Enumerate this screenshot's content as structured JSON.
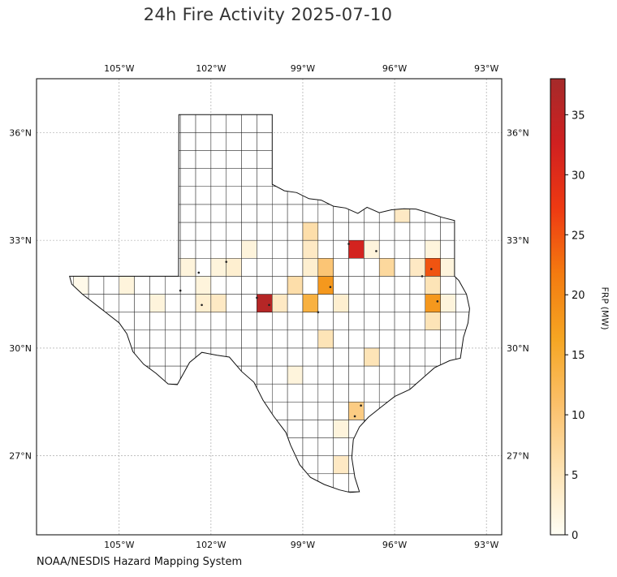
{
  "title": "24h Fire Activity 2025-07-10",
  "source": "NOAA/NESDIS Hazard Mapping System",
  "colorbar": {
    "label": "FRP (MW)",
    "ticks": [
      0,
      5,
      10,
      15,
      20,
      25,
      30,
      35
    ],
    "max": 38,
    "colors": [
      "#fffef5",
      "#fde2b2",
      "#fbc06a",
      "#f5a623",
      "#f47b10",
      "#ee3a12",
      "#d02020",
      "#a52a2a"
    ]
  },
  "map": {
    "lon_range": [
      -107.7,
      -92.5
    ],
    "lat_range": [
      24.8,
      37.5
    ],
    "lon_ticks": [
      {
        "value": -105,
        "label": "105°W"
      },
      {
        "value": -102,
        "label": "102°W"
      },
      {
        "value": -99,
        "label": "99°W"
      },
      {
        "value": -96,
        "label": "96°W"
      },
      {
        "value": -93,
        "label": "93°W"
      }
    ],
    "lat_ticks": [
      {
        "value": 27,
        "label": "27°N"
      },
      {
        "value": 30,
        "label": "30°N"
      },
      {
        "value": 33,
        "label": "33°N"
      },
      {
        "value": 36,
        "label": "36°N"
      }
    ],
    "grid": true
  },
  "counties": [
    {
      "lon": -106.4,
      "lat": 31.9,
      "frp": 1
    },
    {
      "lon": -104.7,
      "lat": 31.5,
      "frp": 2
    },
    {
      "lon": -103.6,
      "lat": 31.3,
      "frp": 2
    },
    {
      "lon": -102.9,
      "lat": 32.45,
      "frp": 2
    },
    {
      "lon": -102.4,
      "lat": 31.9,
      "frp": 2
    },
    {
      "lon": -102.0,
      "lat": 32.45,
      "frp": 2
    },
    {
      "lon": -101.9,
      "lat": 31.4,
      "frp": 4
    },
    {
      "lon": -102.3,
      "lat": 31.4,
      "frp": 3
    },
    {
      "lon": -101.5,
      "lat": 32.45,
      "frp": 3
    },
    {
      "lon": -101.0,
      "lat": 32.75,
      "frp": 2
    },
    {
      "lon": -100.3,
      "lat": 31.45,
      "frp": 36
    },
    {
      "lon": -99.8,
      "lat": 31.3,
      "frp": 4
    },
    {
      "lon": -99.4,
      "lat": 31.8,
      "frp": 6
    },
    {
      "lon": -99.0,
      "lat": 32.5,
      "frp": 4
    },
    {
      "lon": -98.9,
      "lat": 33.2,
      "frp": 6
    },
    {
      "lon": -98.8,
      "lat": 31.2,
      "frp": 14
    },
    {
      "lon": -98.3,
      "lat": 32.3,
      "frp": 10
    },
    {
      "lon": -98.6,
      "lat": 32.0,
      "frp": 3
    },
    {
      "lon": -98.2,
      "lat": 31.8,
      "frp": 18
    },
    {
      "lon": -97.8,
      "lat": 31.2,
      "frp": 3
    },
    {
      "lon": -97.4,
      "lat": 32.8,
      "frp": 32
    },
    {
      "lon": -96.8,
      "lat": 32.8,
      "frp": 2
    },
    {
      "lon": -96.5,
      "lat": 32.1,
      "frp": 7
    },
    {
      "lon": -95.9,
      "lat": 33.6,
      "frp": 4
    },
    {
      "lon": -95.2,
      "lat": 32.4,
      "frp": 4
    },
    {
      "lon": -95.0,
      "lat": 31.9,
      "frp": 5
    },
    {
      "lon": -94.7,
      "lat": 32.2,
      "frp": 25
    },
    {
      "lon": -94.6,
      "lat": 31.3,
      "frp": 18
    },
    {
      "lon": -94.2,
      "lat": 32.1,
      "frp": 2
    },
    {
      "lon": -94.7,
      "lat": 32.8,
      "frp": 2
    },
    {
      "lon": -94.2,
      "lat": 31.3,
      "frp": 2
    },
    {
      "lon": -94.6,
      "lat": 30.7,
      "frp": 5
    },
    {
      "lon": -94.8,
      "lat": 31.0,
      "frp": 2
    },
    {
      "lon": -98.2,
      "lat": 30.2,
      "frp": 5
    },
    {
      "lon": -97.0,
      "lat": 29.9,
      "frp": 5
    },
    {
      "lon": -97.4,
      "lat": 28.2,
      "frp": 9
    },
    {
      "lon": -97.7,
      "lat": 27.9,
      "frp": 2
    },
    {
      "lon": -98.0,
      "lat": 26.9,
      "frp": 4
    },
    {
      "lon": -99.4,
      "lat": 29.3,
      "frp": 2
    }
  ],
  "detections": [
    {
      "lon": -100.5,
      "lat": 31.4
    },
    {
      "lon": -100.1,
      "lat": 31.2
    },
    {
      "lon": -97.5,
      "lat": 32.9
    },
    {
      "lon": -94.8,
      "lat": 32.2
    },
    {
      "lon": -94.6,
      "lat": 31.3
    },
    {
      "lon": -98.1,
      "lat": 31.7
    },
    {
      "lon": -98.5,
      "lat": 31.0
    },
    {
      "lon": -102.3,
      "lat": 31.2
    },
    {
      "lon": -103.0,
      "lat": 31.6
    },
    {
      "lon": -102.4,
      "lat": 32.1
    },
    {
      "lon": -97.3,
      "lat": 28.1
    },
    {
      "lon": -96.6,
      "lat": 32.7
    },
    {
      "lon": -101.5,
      "lat": 32.4
    },
    {
      "lon": -95.1,
      "lat": 32.0
    },
    {
      "lon": -97.1,
      "lat": 28.4
    }
  ]
}
